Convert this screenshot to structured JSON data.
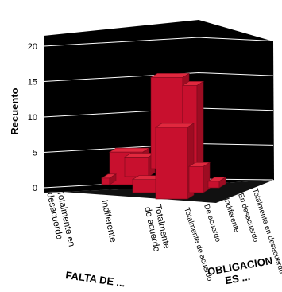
{
  "chart_data": {
    "type": "bar",
    "subtype": "3d-bar",
    "title": "",
    "ylabel": "Recuento",
    "xlabel": "FALTA DE ...",
    "zlabel": "OBLIGACION ES ...",
    "ylim": [
      0,
      20
    ],
    "yticks": [
      "0",
      "5",
      "10",
      "15",
      "20"
    ],
    "grid": true,
    "colors": {
      "bar": "#c8102e",
      "background": "#000000",
      "grid": "#ffffff"
    },
    "x_categories": [
      [
        "Totalmente en",
        "desacuerdo"
      ],
      [
        "Indiferente"
      ],
      [
        "Totalmente",
        "de acuerdo"
      ]
    ],
    "z_categories": [
      "De acuerdo",
      "Totalmente de acuerdo",
      "Indiferente",
      "En desacuerdo",
      "Totalmente en desacuerdo"
    ],
    "bars": [
      {
        "x": "Indiferente",
        "z": "Totalmente de acuerdo",
        "value": 5
      },
      {
        "x": "Indiferente",
        "z": "De acuerdo",
        "value": 3
      },
      {
        "x": "Indiferente",
        "z": "Totalmente de acuerdo",
        "value": 2
      },
      {
        "x": "Indiferente",
        "z": "Indiferente",
        "value": 14
      },
      {
        "x": "Indiferente",
        "z": "En desacuerdo",
        "value": 14
      },
      {
        "x": "Totalmente de acuerdo",
        "z": "Totalmente de acuerdo",
        "value": 11
      },
      {
        "x": "Totalmente de acuerdo",
        "z": "De acuerdo",
        "value": 4
      },
      {
        "x": "Totalmente de acuerdo",
        "z": "Indiferente",
        "value": 1
      },
      {
        "x": "Totalmente en desacuerdo",
        "z": "Totalmente de acuerdo",
        "value": 1
      }
    ]
  }
}
